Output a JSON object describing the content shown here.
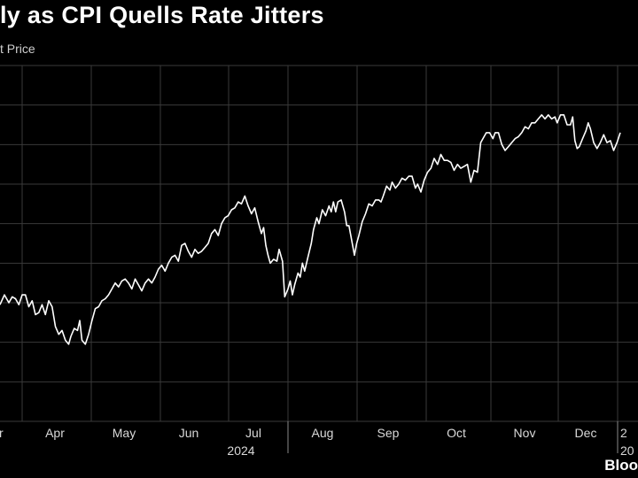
{
  "header": {
    "title": "ly as CPI Quells Rate Jitters",
    "subtitle": "t Price"
  },
  "footer": {
    "source": "Bloo"
  },
  "chart_data": {
    "type": "line",
    "title": "ly as CPI Quells Rate Jitters",
    "ylabel": "t Price",
    "grid": true,
    "x_tick_labels": [
      "r",
      "Apr",
      "May",
      "Jun",
      "Jul",
      "Aug",
      "Sep",
      "Oct",
      "Nov",
      "Dec",
      "2"
    ],
    "year_labels": [
      {
        "label": "2024",
        "after_month": "Jul"
      },
      {
        "label": "20",
        "after_month": "Dec"
      }
    ],
    "y_range": [
      0,
      9
    ],
    "series": [
      {
        "points": [
          [
            0.0,
            2.95
          ],
          [
            0.2,
            3.2
          ],
          [
            0.4,
            3.0
          ],
          [
            0.55,
            3.15
          ],
          [
            0.7,
            3.1
          ],
          [
            0.85,
            2.95
          ],
          [
            1.0,
            3.2
          ],
          [
            1.15,
            3.2
          ],
          [
            1.3,
            2.9
          ],
          [
            1.45,
            3.05
          ],
          [
            1.6,
            2.7
          ],
          [
            1.75,
            2.75
          ],
          [
            1.9,
            2.95
          ],
          [
            2.05,
            2.7
          ],
          [
            2.2,
            3.05
          ],
          [
            2.35,
            2.9
          ],
          [
            2.5,
            2.4
          ],
          [
            2.65,
            2.2
          ],
          [
            2.8,
            2.3
          ],
          [
            2.95,
            2.05
          ],
          [
            3.1,
            1.95
          ],
          [
            3.2,
            2.15
          ],
          [
            3.35,
            2.35
          ],
          [
            3.5,
            2.3
          ],
          [
            3.6,
            2.55
          ],
          [
            3.7,
            2.05
          ],
          [
            3.85,
            1.95
          ],
          [
            4.0,
            2.2
          ],
          [
            4.15,
            2.55
          ],
          [
            4.3,
            2.85
          ],
          [
            4.45,
            2.9
          ],
          [
            4.6,
            3.05
          ],
          [
            4.75,
            3.1
          ],
          [
            4.9,
            3.2
          ],
          [
            5.05,
            3.35
          ],
          [
            5.2,
            3.5
          ],
          [
            5.35,
            3.4
          ],
          [
            5.5,
            3.55
          ],
          [
            5.65,
            3.6
          ],
          [
            5.8,
            3.5
          ],
          [
            5.95,
            3.35
          ],
          [
            6.1,
            3.6
          ],
          [
            6.25,
            3.45
          ],
          [
            6.4,
            3.3
          ],
          [
            6.55,
            3.5
          ],
          [
            6.7,
            3.6
          ],
          [
            6.85,
            3.5
          ],
          [
            7.0,
            3.65
          ],
          [
            7.15,
            3.85
          ],
          [
            7.3,
            3.95
          ],
          [
            7.45,
            3.8
          ],
          [
            7.6,
            4.0
          ],
          [
            7.75,
            4.15
          ],
          [
            7.9,
            4.2
          ],
          [
            8.05,
            4.05
          ],
          [
            8.2,
            4.45
          ],
          [
            8.35,
            4.5
          ],
          [
            8.5,
            4.3
          ],
          [
            8.65,
            4.15
          ],
          [
            8.8,
            4.35
          ],
          [
            8.95,
            4.25
          ],
          [
            9.1,
            4.3
          ],
          [
            9.25,
            4.4
          ],
          [
            9.4,
            4.5
          ],
          [
            9.55,
            4.75
          ],
          [
            9.7,
            4.85
          ],
          [
            9.85,
            4.7
          ],
          [
            10.0,
            5.0
          ],
          [
            10.15,
            5.15
          ],
          [
            10.3,
            5.2
          ],
          [
            10.45,
            5.35
          ],
          [
            10.6,
            5.4
          ],
          [
            10.75,
            5.55
          ],
          [
            10.9,
            5.5
          ],
          [
            11.05,
            5.7
          ],
          [
            11.2,
            5.45
          ],
          [
            11.35,
            5.25
          ],
          [
            11.5,
            5.4
          ],
          [
            11.65,
            5.05
          ],
          [
            11.8,
            4.75
          ],
          [
            11.9,
            4.9
          ],
          [
            12.0,
            4.45
          ],
          [
            12.1,
            4.2
          ],
          [
            12.2,
            4.0
          ],
          [
            12.35,
            4.1
          ],
          [
            12.5,
            4.05
          ],
          [
            12.6,
            4.35
          ],
          [
            12.75,
            4.05
          ],
          [
            12.85,
            3.15
          ],
          [
            13.0,
            3.35
          ],
          [
            13.1,
            3.55
          ],
          [
            13.2,
            3.2
          ],
          [
            13.3,
            3.45
          ],
          [
            13.45,
            3.75
          ],
          [
            13.55,
            3.65
          ],
          [
            13.65,
            4.0
          ],
          [
            13.75,
            3.8
          ],
          [
            13.9,
            4.15
          ],
          [
            14.05,
            4.5
          ],
          [
            14.15,
            4.85
          ],
          [
            14.3,
            5.15
          ],
          [
            14.4,
            5.0
          ],
          [
            14.55,
            5.35
          ],
          [
            14.7,
            5.2
          ],
          [
            14.85,
            5.45
          ],
          [
            14.95,
            5.3
          ],
          [
            15.05,
            5.55
          ],
          [
            15.15,
            5.3
          ],
          [
            15.25,
            5.55
          ],
          [
            15.4,
            5.6
          ],
          [
            15.55,
            5.3
          ],
          [
            15.65,
            4.95
          ],
          [
            15.75,
            4.95
          ],
          [
            15.85,
            4.65
          ],
          [
            16.0,
            4.2
          ],
          [
            16.1,
            4.5
          ],
          [
            16.2,
            4.7
          ],
          [
            16.35,
            5.05
          ],
          [
            16.5,
            5.25
          ],
          [
            16.65,
            5.5
          ],
          [
            16.8,
            5.45
          ],
          [
            16.95,
            5.6
          ],
          [
            17.1,
            5.6
          ],
          [
            17.2,
            5.55
          ],
          [
            17.3,
            5.7
          ],
          [
            17.45,
            5.95
          ],
          [
            17.6,
            5.85
          ],
          [
            17.7,
            6.05
          ],
          [
            17.85,
            5.9
          ],
          [
            18.0,
            6.0
          ],
          [
            18.15,
            6.15
          ],
          [
            18.3,
            6.1
          ],
          [
            18.45,
            6.2
          ],
          [
            18.6,
            6.2
          ],
          [
            18.75,
            5.9
          ],
          [
            18.85,
            6.0
          ],
          [
            19.0,
            5.8
          ],
          [
            19.15,
            6.1
          ],
          [
            19.3,
            6.3
          ],
          [
            19.45,
            6.4
          ],
          [
            19.6,
            6.65
          ],
          [
            19.75,
            6.5
          ],
          [
            19.9,
            6.75
          ],
          [
            20.05,
            6.6
          ],
          [
            20.2,
            6.6
          ],
          [
            20.35,
            6.55
          ],
          [
            20.5,
            6.35
          ],
          [
            20.65,
            6.5
          ],
          [
            20.8,
            6.4
          ],
          [
            20.95,
            6.45
          ],
          [
            21.1,
            6.5
          ],
          [
            21.25,
            6.05
          ],
          [
            21.4,
            6.35
          ],
          [
            21.55,
            6.3
          ],
          [
            21.7,
            7.05
          ],
          [
            21.8,
            7.15
          ],
          [
            21.95,
            7.3
          ],
          [
            22.1,
            7.3
          ],
          [
            22.25,
            7.15
          ],
          [
            22.35,
            7.3
          ],
          [
            22.5,
            7.3
          ],
          [
            22.65,
            7.0
          ],
          [
            22.8,
            6.85
          ],
          [
            22.95,
            6.95
          ],
          [
            23.1,
            7.05
          ],
          [
            23.25,
            7.15
          ],
          [
            23.4,
            7.2
          ],
          [
            23.55,
            7.3
          ],
          [
            23.7,
            7.45
          ],
          [
            23.85,
            7.4
          ],
          [
            24.0,
            7.55
          ],
          [
            24.15,
            7.55
          ],
          [
            24.3,
            7.65
          ],
          [
            24.45,
            7.75
          ],
          [
            24.6,
            7.65
          ],
          [
            24.75,
            7.75
          ],
          [
            24.9,
            7.65
          ],
          [
            25.05,
            7.7
          ],
          [
            25.15,
            7.55
          ],
          [
            25.3,
            7.75
          ],
          [
            25.45,
            7.75
          ],
          [
            25.6,
            7.5
          ],
          [
            25.75,
            7.5
          ],
          [
            25.85,
            7.7
          ],
          [
            25.95,
            7.1
          ],
          [
            26.05,
            6.9
          ],
          [
            26.15,
            6.95
          ],
          [
            26.3,
            7.15
          ],
          [
            26.45,
            7.35
          ],
          [
            26.55,
            7.55
          ],
          [
            26.65,
            7.4
          ],
          [
            26.8,
            7.05
          ],
          [
            26.95,
            6.9
          ],
          [
            27.1,
            7.05
          ],
          [
            27.25,
            7.25
          ],
          [
            27.4,
            7.05
          ],
          [
            27.55,
            7.1
          ],
          [
            27.7,
            6.85
          ],
          [
            27.85,
            7.05
          ],
          [
            28.0,
            7.3
          ]
        ]
      }
    ]
  }
}
